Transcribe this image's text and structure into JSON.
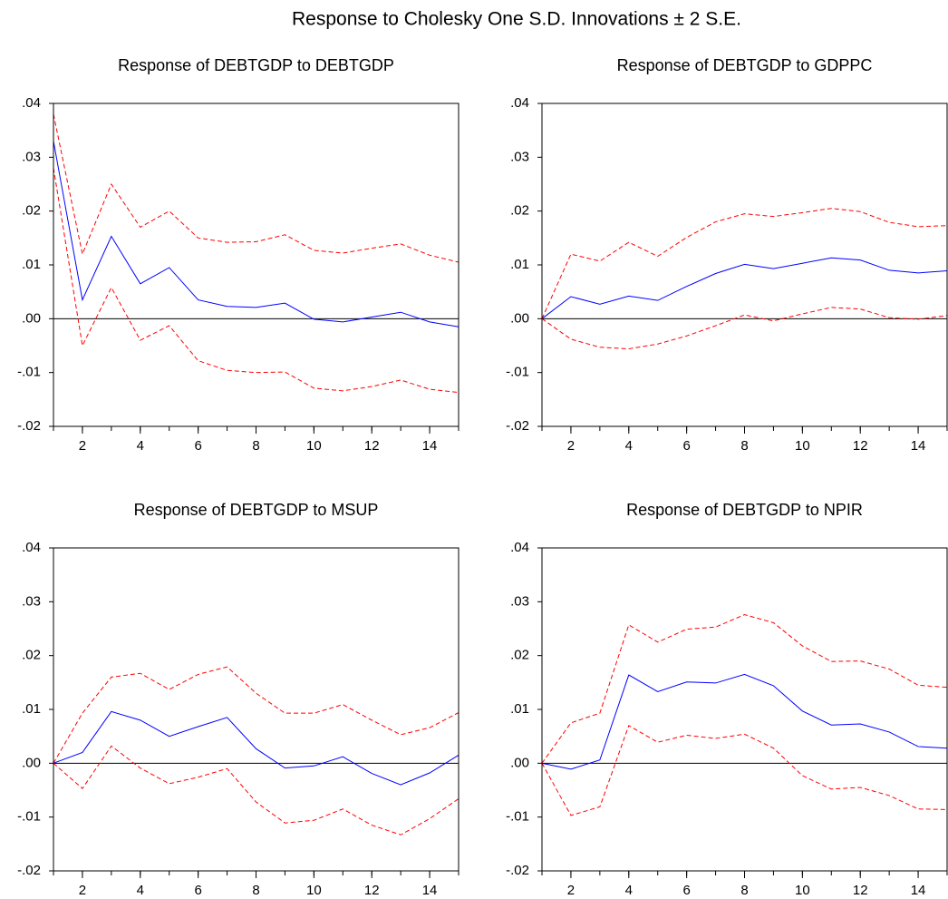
{
  "title": "Response to Cholesky One S.D. Innovations ± 2 S.E.",
  "chart_data": [
    {
      "type": "line",
      "title": "Response of DEBTGDP to DEBTGDP",
      "x": [
        1,
        2,
        3,
        4,
        5,
        6,
        7,
        8,
        9,
        10,
        11,
        12,
        13,
        14,
        15
      ],
      "xlim": [
        1,
        15
      ],
      "xticks": [
        2,
        4,
        6,
        8,
        10,
        12,
        14
      ],
      "ylim": [
        -0.02,
        0.04
      ],
      "yticks": [
        {
          "value": -0.02,
          "label": "-.02"
        },
        {
          "value": -0.01,
          "label": "-.01"
        },
        {
          "value": 0,
          "label": ".00"
        },
        {
          "value": 0.01,
          "label": ".01"
        },
        {
          "value": 0.02,
          "label": ".02"
        },
        {
          "value": 0.03,
          "label": ".03"
        },
        {
          "value": 0.04,
          "label": ".04"
        }
      ],
      "reference_line": 0,
      "series": [
        {
          "color": "#0000ff",
          "style": "solid",
          "values": [
            0.033,
            0.0035,
            0.0153,
            0.0065,
            0.0095,
            0.0035,
            0.0023,
            0.0021,
            0.0029,
            -0.0001,
            -0.0006,
            0.0003,
            0.0012,
            -0.0006,
            -0.0015
          ]
        },
        {
          "color": "#ff0000",
          "style": "dashed",
          "values": [
            0.038,
            0.012,
            0.025,
            0.017,
            0.02,
            0.015,
            0.0142,
            0.0143,
            0.0156,
            0.0127,
            0.0122,
            0.0131,
            0.0139,
            0.0118,
            0.0105
          ]
        },
        {
          "color": "#ff0000",
          "style": "dashed",
          "values": [
            0.028,
            -0.005,
            0.0058,
            -0.004,
            -0.0013,
            -0.0078,
            -0.0096,
            -0.01,
            -0.0099,
            -0.0129,
            -0.0134,
            -0.0126,
            -0.0114,
            -0.0131,
            -0.0137
          ]
        }
      ]
    },
    {
      "type": "line",
      "title": "Response of DEBTGDP to GDPPC",
      "x": [
        1,
        2,
        3,
        4,
        5,
        6,
        7,
        8,
        9,
        10,
        11,
        12,
        13,
        14,
        15
      ],
      "xlim": [
        1,
        15
      ],
      "xticks": [
        2,
        4,
        6,
        8,
        10,
        12,
        14
      ],
      "ylim": [
        -0.02,
        0.04
      ],
      "yticks": [
        {
          "value": -0.02,
          "label": "-.02"
        },
        {
          "value": -0.01,
          "label": "-.01"
        },
        {
          "value": 0,
          "label": ".00"
        },
        {
          "value": 0.01,
          "label": ".01"
        },
        {
          "value": 0.02,
          "label": ".02"
        },
        {
          "value": 0.03,
          "label": ".03"
        },
        {
          "value": 0.04,
          "label": ".04"
        }
      ],
      "reference_line": 0,
      "series": [
        {
          "color": "#0000ff",
          "style": "solid",
          "values": [
            0,
            0.0041,
            0.0027,
            0.0042,
            0.0034,
            0.006,
            0.0084,
            0.0101,
            0.0093,
            0.0103,
            0.0113,
            0.0109,
            0.009,
            0.0085,
            0.0089
          ]
        },
        {
          "color": "#ff0000",
          "style": "dashed",
          "values": [
            0,
            0.012,
            0.0107,
            0.0142,
            0.0116,
            0.0151,
            0.018,
            0.0195,
            0.019,
            0.0197,
            0.0205,
            0.0199,
            0.0179,
            0.0171,
            0.0173
          ]
        },
        {
          "color": "#ff0000",
          "style": "dashed",
          "values": [
            0,
            -0.0038,
            -0.0053,
            -0.0056,
            -0.0047,
            -0.0032,
            -0.0013,
            0.0007,
            -0.0004,
            0.0009,
            0.0021,
            0.0018,
            0.0002,
            -0.0001,
            0.0006
          ]
        }
      ]
    },
    {
      "type": "line",
      "title": "Response of DEBTGDP to MSUP",
      "x": [
        1,
        2,
        3,
        4,
        5,
        6,
        7,
        8,
        9,
        10,
        11,
        12,
        13,
        14,
        15
      ],
      "xlim": [
        1,
        15
      ],
      "xticks": [
        2,
        4,
        6,
        8,
        10,
        12,
        14
      ],
      "ylim": [
        -0.02,
        0.04
      ],
      "yticks": [
        {
          "value": -0.02,
          "label": "-.02"
        },
        {
          "value": -0.01,
          "label": "-.01"
        },
        {
          "value": 0,
          "label": ".00"
        },
        {
          "value": 0.01,
          "label": ".01"
        },
        {
          "value": 0.02,
          "label": ".02"
        },
        {
          "value": 0.03,
          "label": ".03"
        },
        {
          "value": 0.04,
          "label": ".04"
        }
      ],
      "reference_line": 0,
      "series": [
        {
          "color": "#0000ff",
          "style": "solid",
          "values": [
            0,
            0.002,
            0.0096,
            0.008,
            0.005,
            0.0068,
            0.0085,
            0.0027,
            -0.0009,
            -0.0005,
            0.0012,
            -0.0019,
            -0.004,
            -0.0018,
            0.0015
          ]
        },
        {
          "color": "#ff0000",
          "style": "dashed",
          "values": [
            0,
            0.0093,
            0.016,
            0.0167,
            0.0137,
            0.0165,
            0.0179,
            0.013,
            0.0093,
            0.0093,
            0.0109,
            0.008,
            0.0053,
            0.0066,
            0.0094
          ]
        },
        {
          "color": "#ff0000",
          "style": "dashed",
          "values": [
            0,
            -0.0047,
            0.0032,
            -0.0009,
            -0.0038,
            -0.0026,
            -0.001,
            -0.0072,
            -0.0111,
            -0.0106,
            -0.0085,
            -0.0115,
            -0.0133,
            -0.0103,
            -0.0066
          ]
        }
      ]
    },
    {
      "type": "line",
      "title": "Response of DEBTGDP to NPIR",
      "x": [
        1,
        2,
        3,
        4,
        5,
        6,
        7,
        8,
        9,
        10,
        11,
        12,
        13,
        14,
        15
      ],
      "xlim": [
        1,
        15
      ],
      "xticks": [
        2,
        4,
        6,
        8,
        10,
        12,
        14
      ],
      "ylim": [
        -0.02,
        0.04
      ],
      "yticks": [
        {
          "value": -0.02,
          "label": "-.02"
        },
        {
          "value": -0.01,
          "label": "-.01"
        },
        {
          "value": 0,
          "label": ".00"
        },
        {
          "value": 0.01,
          "label": ".01"
        },
        {
          "value": 0.02,
          "label": ".02"
        },
        {
          "value": 0.03,
          "label": ".03"
        },
        {
          "value": 0.04,
          "label": ".04"
        }
      ],
      "reference_line": 0,
      "series": [
        {
          "color": "#0000ff",
          "style": "solid",
          "values": [
            0,
            -0.0011,
            0.0006,
            0.0164,
            0.0133,
            0.0151,
            0.0149,
            0.0165,
            0.0144,
            0.0097,
            0.0071,
            0.0073,
            0.0058,
            0.0031,
            0.0028
          ]
        },
        {
          "color": "#ff0000",
          "style": "dashed",
          "values": [
            0,
            0.0075,
            0.0093,
            0.0257,
            0.0225,
            0.0249,
            0.0253,
            0.0276,
            0.0261,
            0.0218,
            0.0189,
            0.019,
            0.0175,
            0.0145,
            0.0141
          ]
        },
        {
          "color": "#ff0000",
          "style": "dashed",
          "values": [
            0,
            -0.0097,
            -0.0081,
            0.007,
            0.0039,
            0.0052,
            0.0046,
            0.0054,
            0.0028,
            -0.0023,
            -0.0048,
            -0.0045,
            -0.006,
            -0.0085,
            -0.0086
          ]
        }
      ]
    }
  ]
}
